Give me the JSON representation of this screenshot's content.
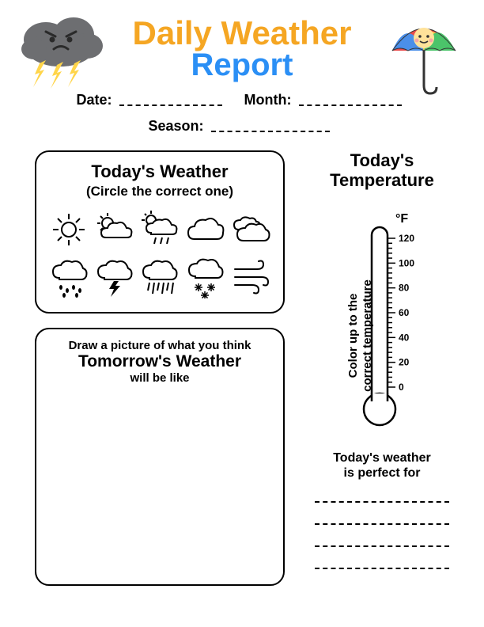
{
  "title": {
    "line1": "Daily Weather",
    "line2": "Report",
    "color1": "#f5a623",
    "color2": "#2b8ff5"
  },
  "fields": {
    "date_label": "Date:",
    "month_label": "Month:",
    "season_label": "Season:"
  },
  "todays_weather": {
    "title": "Today's Weather",
    "subtitle": "(Circle the correct one)"
  },
  "tomorrow": {
    "line1": "Draw a picture of what you think",
    "line2": "Tomorrow's Weather",
    "line3": "will be like"
  },
  "temperature": {
    "title1": "Today's",
    "title2": "Temperature",
    "instruction1": "Color up to the",
    "instruction2": "correct temperature",
    "unit": "°F",
    "ticks": [
      "120",
      "100",
      "80",
      "60",
      "40",
      "20",
      "0"
    ]
  },
  "perfect_for": {
    "line1": "Today's weather",
    "line2": "is perfect for"
  },
  "colors": {
    "cloud_body": "#6d6e71",
    "cloud_dark": "#4b4c4e",
    "lightning": "#ffd54a",
    "umbrella_red": "#e94b4b",
    "umbrella_yellow": "#fbd34b",
    "umbrella_green": "#4bc46a",
    "umbrella_blue": "#4b8fe9",
    "face": "#ffe29a"
  }
}
